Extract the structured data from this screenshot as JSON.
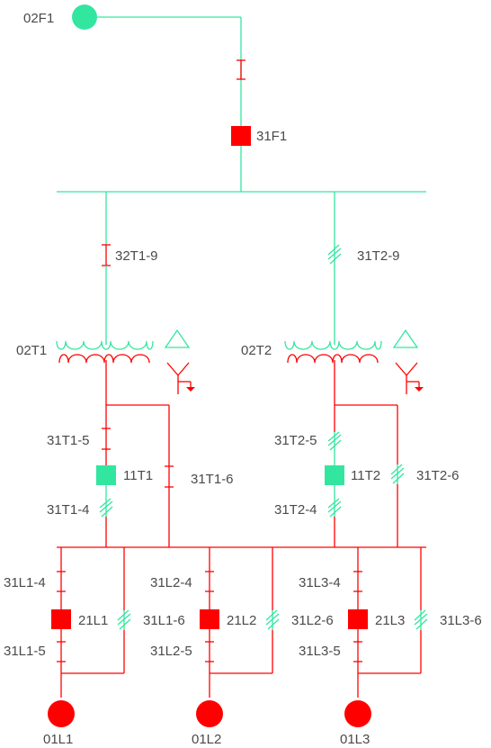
{
  "colors": {
    "energized": "#33e6a0",
    "de_energized": "#ff0000",
    "label": "#4a4a4a"
  },
  "labels": {
    "src_02F1": "02F1",
    "brk_31F1": "31F1",
    "sw_32T1_9": "32T1-9",
    "sw_31T2_9": "31T2-9",
    "tr_02T1": "02T1",
    "tr_02T2": "02T2",
    "sw_31T1_5": "31T1-5",
    "brk_11T1": "11T1",
    "sw_31T1_6": "31T1-6",
    "sw_31T1_4": "31T1-4",
    "sw_31T2_5": "31T2-5",
    "brk_11T2": "11T2",
    "sw_31T2_6": "31T2-6",
    "sw_31T2_4": "31T2-4",
    "sw_31L1_4": "31L1-4",
    "brk_21L1": "21L1",
    "sw_31L1_6": "31L1-6",
    "sw_31L1_5": "31L1-5",
    "load_01L1": "01L1",
    "sw_31L2_4": "31L2-4",
    "brk_21L2": "21L2",
    "sw_31L2_6": "31L2-6",
    "sw_31L2_5": "31L2-5",
    "load_01L2": "01L2",
    "sw_31L3_4": "31L3-4",
    "brk_21L3": "21L3",
    "sw_31L3_6": "31L3-6",
    "sw_31L3_5": "31L3-5",
    "load_01L3": "01L3"
  }
}
